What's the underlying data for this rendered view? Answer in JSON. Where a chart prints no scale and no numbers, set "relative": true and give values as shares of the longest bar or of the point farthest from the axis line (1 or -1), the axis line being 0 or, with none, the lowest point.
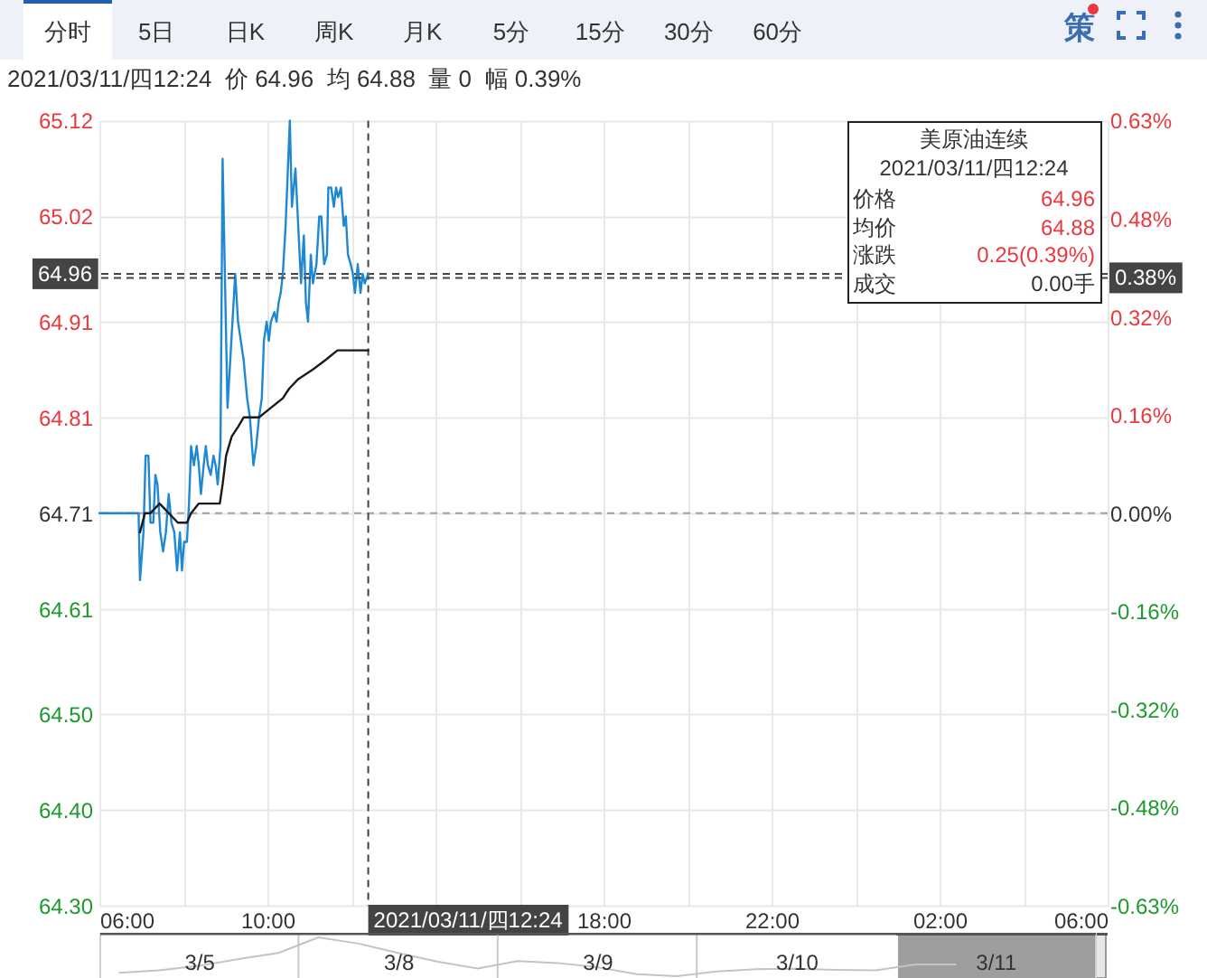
{
  "chart_data": [
    {
      "type": "other",
      "annotations": [
        "分时",
        "5日",
        "日K",
        "周K",
        "月K",
        "5分",
        "15分",
        "30分",
        "60分",
        "策"
      ]
    },
    {
      "type": "line",
      "subtitle": "2021/03/11/四12:24  价 64.96  均 64.88  量 0  幅 0.39%",
      "annotations": [
        "美原油连续",
        "2021/03/11/四12:24",
        "价格",
        "64.96",
        "均价",
        "64.88",
        "涨跌",
        "0.25(0.39%)",
        "成交",
        "0.00手"
      ],
      "xlim": [
        "2021-03-11T06:00",
        "2021-03-12T06:00"
      ],
      "xticks": [
        {
          "value": "2021-03-11T06:00",
          "label": "06:00"
        },
        {
          "value": "2021-03-11T08:00",
          "label": null
        },
        {
          "value": "2021-03-11T10:00",
          "label": "10:00"
        },
        {
          "value": "2021-03-11T12:00",
          "label": null
        },
        {
          "value": "2021-03-11T14:00",
          "label": null
        },
        {
          "value": "2021-03-11T16:00",
          "label": null
        },
        {
          "value": "2021-03-11T18:00",
          "label": "18:00"
        },
        {
          "value": "2021-03-11T20:00",
          "label": null
        },
        {
          "value": "2021-03-11T22:00",
          "label": "22:00"
        },
        {
          "value": "2021-03-12T00:00",
          "label": null
        },
        {
          "value": "2021-03-12T02:00",
          "label": "02:00"
        },
        {
          "value": "2021-03-12T04:00",
          "label": null
        },
        {
          "value": "2021-03-12T06:00",
          "label": "06:00"
        }
      ],
      "ylim": [
        64.3,
        65.12
      ],
      "yticks": [
        {
          "value": 64.3,
          "label": "64.30"
        },
        {
          "value": 64.4,
          "label": "64.40"
        },
        {
          "value": 64.5,
          "label": "64.50"
        },
        64.61,
        64.71,
        64.81,
        64.91,
        65.02,
        65.12
      ],
      "y2lim": [
        -0.634,
        0.634
      ],
      "y2ticks": [
        {
          "value": -0.634,
          "label": "-0.63%"
        },
        {
          "value": -0.4755,
          "label": "-0.48%"
        },
        {
          "value": -0.317,
          "label": "-0.32%"
        },
        {
          "value": -0.1585,
          "label": "-0.16%"
        },
        {
          "value": 0,
          "label": "0.00%"
        },
        {
          "value": 0.1585,
          "label": "0.16%"
        },
        {
          "value": 0.317,
          "label": "0.32%"
        },
        {
          "value": 0.4755,
          "label": "0.48%"
        },
        {
          "value": 0.634,
          "label": "0.63%"
        }
      ],
      "grid": true,
      "ref_lines": [
        {
          "axis": "y",
          "value": 64.71,
          "color": "#a0a0a0",
          "line_style": "dashed"
        },
        {
          "axis": "x",
          "value": "2021-03-11T12:24",
          "label": "2021/03/11/四12:24",
          "color": "#444444",
          "line_style": "dashed"
        },
        {
          "axis": "y",
          "value": 64.96,
          "label": "64.96",
          "color": "#444444",
          "line_style": "dashed"
        },
        {
          "axis": "y2",
          "value": 0.38,
          "label": "0.38%",
          "color": "#444444",
          "line_style": "dashed"
        }
      ],
      "series": [
        {
          "color": "#1f88d2",
          "x": [
            "2021-03-11T06:00",
            "2021-03-11T06:56",
            "2021-03-11T06:58",
            "2021-03-11T07:03",
            "2021-03-11T07:06",
            "2021-03-11T07:10",
            "2021-03-11T07:13",
            "2021-03-11T07:17",
            "2021-03-11T07:20",
            "2021-03-11T07:23",
            "2021-03-11T07:27",
            "2021-03-11T07:31",
            "2021-03-11T07:35",
            "2021-03-11T07:39",
            "2021-03-11T07:43",
            "2021-03-11T07:47",
            "2021-03-11T07:51",
            "2021-03-11T07:55",
            "2021-03-11T07:58",
            "2021-03-11T08:01",
            "2021-03-11T08:05",
            "2021-03-11T08:08",
            "2021-03-11T08:11",
            "2021-03-11T08:15",
            "2021-03-11T08:19",
            "2021-03-11T08:22",
            "2021-03-11T08:25",
            "2021-03-11T08:29",
            "2021-03-11T08:32",
            "2021-03-11T08:35",
            "2021-03-11T08:39",
            "2021-03-11T08:43",
            "2021-03-11T08:46",
            "2021-03-11T08:49",
            "2021-03-11T08:53",
            "2021-03-11T08:56",
            "2021-03-11T09:03",
            "2021-03-11T09:14",
            "2021-03-11T09:18",
            "2021-03-11T09:22",
            "2021-03-11T09:26",
            "2021-03-11T09:31",
            "2021-03-11T09:35",
            "2021-03-11T09:40",
            "2021-03-11T09:44",
            "2021-03-11T09:48",
            "2021-03-11T09:52",
            "2021-03-11T09:55",
            "2021-03-11T09:59",
            "2021-03-11T10:02",
            "2021-03-11T10:05",
            "2021-03-11T10:10",
            "2021-03-11T10:13",
            "2021-03-11T10:16",
            "2021-03-11T10:19",
            "2021-03-11T10:22",
            "2021-03-11T10:26",
            "2021-03-11T10:32",
            "2021-03-11T10:35",
            "2021-03-11T10:40",
            "2021-03-11T10:44",
            "2021-03-11T10:48",
            "2021-03-11T10:52",
            "2021-03-11T10:55",
            "2021-03-11T10:58",
            "2021-03-11T11:02",
            "2021-03-11T11:05",
            "2021-03-11T11:10",
            "2021-03-11T11:14",
            "2021-03-11T11:17",
            "2021-03-11T11:21",
            "2021-03-11T11:25",
            "2021-03-11T11:27",
            "2021-03-11T11:31",
            "2021-03-11T11:35",
            "2021-03-11T11:38",
            "2021-03-11T11:41",
            "2021-03-11T11:45",
            "2021-03-11T11:49",
            "2021-03-11T11:52",
            "2021-03-11T11:55",
            "2021-03-11T11:59",
            "2021-03-11T12:02",
            "2021-03-11T12:05",
            "2021-03-11T12:09",
            "2021-03-11T12:13",
            "2021-03-11T12:16",
            "2021-03-11T12:19",
            "2021-03-11T12:24"
          ],
          "values": [
            64.71,
            64.71,
            64.64,
            64.69,
            64.77,
            64.77,
            64.7,
            64.7,
            64.75,
            64.74,
            64.69,
            64.67,
            64.69,
            64.73,
            64.7,
            64.69,
            64.65,
            64.69,
            64.65,
            64.68,
            64.68,
            64.72,
            64.78,
            64.76,
            64.78,
            64.76,
            64.73,
            64.76,
            64.78,
            64.76,
            64.75,
            64.77,
            64.76,
            64.74,
            64.78,
            65.08,
            64.82,
            64.96,
            64.91,
            64.89,
            64.87,
            64.83,
            64.81,
            64.76,
            64.78,
            64.81,
            64.83,
            64.89,
            64.91,
            64.89,
            64.91,
            64.92,
            64.91,
            64.93,
            64.94,
            64.96,
            65.01,
            65.12,
            65.03,
            65.07,
            65.01,
            64.95,
            65.0,
            64.93,
            64.91,
            64.98,
            64.95,
            64.97,
            65.02,
            65.02,
            64.97,
            64.98,
            65.05,
            65.05,
            65.03,
            65.05,
            65.04,
            65.05,
            65.01,
            65.02,
            64.98,
            64.97,
            64.96,
            64.94,
            64.97,
            64.94,
            64.96,
            64.95,
            64.96
          ]
        },
        {
          "color": "#1a1a1a",
          "x": [
            "2021-03-11T06:58",
            "2021-03-11T07:05",
            "2021-03-11T07:13",
            "2021-03-11T07:26",
            "2021-03-11T07:39",
            "2021-03-11T07:52",
            "2021-03-11T08:05",
            "2021-03-11T08:11",
            "2021-03-11T08:22",
            "2021-03-11T08:35",
            "2021-03-11T08:52",
            "2021-03-11T08:56",
            "2021-03-11T09:01",
            "2021-03-11T09:09",
            "2021-03-11T09:18",
            "2021-03-11T09:26",
            "2021-03-11T09:48",
            "2021-03-11T10:05",
            "2021-03-11T10:22",
            "2021-03-11T10:31",
            "2021-03-11T10:44",
            "2021-03-11T11:05",
            "2021-03-11T11:23",
            "2021-03-11T11:40",
            "2021-03-11T11:57",
            "2021-03-11T12:14",
            "2021-03-11T12:24"
          ],
          "values": [
            64.69,
            64.71,
            64.71,
            64.72,
            64.71,
            64.7,
            64.7,
            64.71,
            64.72,
            64.72,
            64.72,
            64.74,
            64.77,
            64.79,
            64.8,
            64.81,
            64.81,
            64.82,
            64.83,
            64.84,
            64.85,
            64.86,
            64.87,
            64.88,
            64.88,
            64.88,
            64.88
          ]
        }
      ]
    },
    {
      "type": "line",
      "relative": true,
      "categories": [
        null,
        null,
        "3/5",
        null,
        null,
        null,
        null,
        "3/8",
        null,
        null,
        null,
        null,
        "3/9",
        null,
        null,
        null,
        null,
        "3/10",
        null,
        null,
        null,
        null,
        "3/11",
        null,
        null
      ],
      "series": [
        {
          "color": "#c4c4c4",
          "values": [
            0.09,
            0.15,
            0.27,
            0.44,
            0.6,
            1,
            0.84,
            0.6,
            0.37,
            0.2,
            0.39,
            0.34,
            0.23,
            0.05,
            0,
            0.12,
            0.18,
            0.19,
            0.16,
            0.15,
            0.3,
            0.3,
            null,
            null,
            null
          ]
        }
      ]
    }
  ]
}
